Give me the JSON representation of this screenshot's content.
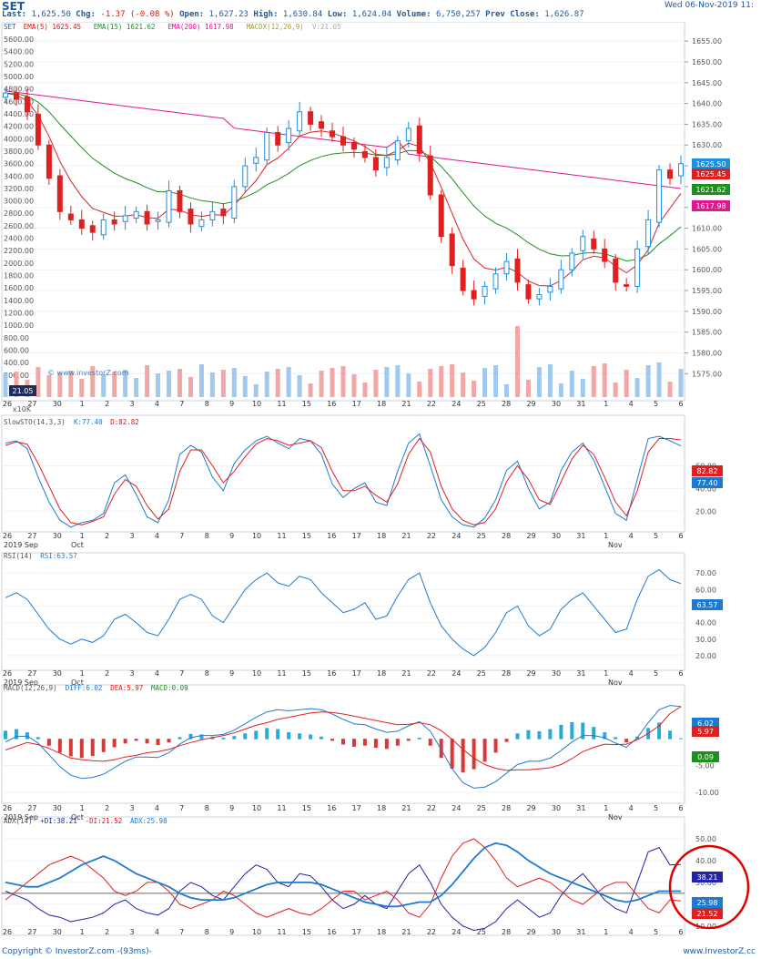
{
  "header": {
    "symbol": "SET",
    "last_label": "Last:",
    "last": "1,625.50",
    "chg_label": "Chg:",
    "chg": "-1.37 (-0.08 %)",
    "open_label": "Open:",
    "open": "1,627.23",
    "high_label": "High:",
    "high": "1,630.84",
    "low_label": "Low:",
    "low": "1,624.04",
    "volume_label": "Volume:",
    "volume": "6,750,257",
    "prev_label": "Prev Close:",
    "prev": "1,626.87",
    "datetime": "Wed 06-Nov-2019 11:"
  },
  "legend": {
    "price": [
      {
        "text": "SET",
        "color": "#1e5aa0"
      },
      {
        "text": "EMA(5)  1625.45",
        "color": "#d11"
      },
      {
        "text": "EMA(15)  1621.62",
        "color": "#228b22"
      },
      {
        "text": "EMA(200)  1617.98",
        "color": "#e0168c"
      },
      {
        "text": "MACDX(12,26,9)",
        "color": "#9aa030"
      },
      {
        "text": "V:21.05",
        "color": "#aaa"
      }
    ],
    "stoch": [
      {
        "text": "SlowSTO(14,3,3)",
        "color": "#555"
      },
      {
        "text": "K:77.40",
        "color": "#1e7ad0"
      },
      {
        "text": "D:82.82",
        "color": "#d11"
      }
    ],
    "rsi": [
      {
        "text": "RSI(14)",
        "color": "#555"
      },
      {
        "text": "RSI:63.57",
        "color": "#1e7ad0"
      }
    ],
    "macd": [
      {
        "text": "MACD(12,26,9)",
        "color": "#555"
      },
      {
        "text": "DIFF:6.02",
        "color": "#1e7ad0"
      },
      {
        "text": "DEA:5.97",
        "color": "#d11"
      },
      {
        "text": "MACD:0.09",
        "color": "#228b22"
      }
    ],
    "adx": [
      {
        "text": "ADX(14)",
        "color": "#555"
      },
      {
        "text": "+DI:38.21",
        "color": "#2222aa"
      },
      {
        "text": "-DI:21.52",
        "color": "#d11"
      },
      {
        "text": "ADX:25.98",
        "color": "#1e7ad0"
      }
    ]
  },
  "watermark": "© www.investorZ.com",
  "volume_unit": "x10K",
  "volume_last": "21.05",
  "footer": {
    "left": "Copyright © InvestorZ.com -(93ms)-",
    "right": "www.InvestorZ.cc"
  },
  "colors": {
    "up": "#1e8fe0",
    "down": "#e02020",
    "ema5": "#e02020",
    "ema15": "#1f8f1f",
    "ema200": "#e0168c",
    "adx": "#1e7ad0",
    "pdi": "#2222aa",
    "ndi": "#e02020",
    "highlight": "#e00000"
  },
  "chart_data": [
    {
      "type": "candlestick",
      "title": "SET",
      "x_labels": [
        "30",
        "1",
        "2",
        "3",
        "4",
        "7",
        "8",
        "9",
        "10",
        "11",
        "15",
        "16",
        "17",
        "18",
        "21",
        "22",
        "24",
        "25",
        "28",
        "29",
        "30",
        "31",
        "1",
        "4",
        "5",
        "6"
      ],
      "month_labels": [
        "Oct",
        "Nov"
      ],
      "price_axis": [
        "1655.00",
        "1650.00",
        "1645.00",
        "1640.00",
        "1635.00",
        "1630.00",
        "1625.00",
        "1620.00",
        "1615.00",
        "1610.00",
        "1605.00",
        "1600.00",
        "1595.00",
        "1590.00",
        "1585.00",
        "1580.00",
        "1575.00"
      ],
      "volume_axis": [
        "5600.00",
        "5400.00",
        "5200.00",
        "5000.00",
        "4800.00",
        "4600.00",
        "4400.00",
        "4200.00",
        "4000.00",
        "3800.00",
        "3600.00",
        "3400.00",
        "3200.00",
        "3000.00",
        "2800.00",
        "2600.00",
        "2400.00",
        "2200.00",
        "2000.00",
        "1800.00",
        "1600.00",
        "1400.00",
        "1200.00",
        "1000.00",
        "800.00",
        "600.00",
        "400.00",
        "200.00"
      ],
      "ylim": [
        1572,
        1657
      ],
      "close": [
        1642.5,
        1641,
        1638,
        1630,
        1622,
        1614,
        1612,
        1610,
        1609,
        1612,
        1611,
        1613,
        1614,
        1611,
        1612,
        1619,
        1614,
        1611,
        1612,
        1614,
        1613,
        1620,
        1625,
        1627,
        1633,
        1630,
        1634,
        1638,
        1635,
        1634,
        1632,
        1630,
        1629,
        1627,
        1624,
        1627,
        1631,
        1634,
        1628,
        1618,
        1608,
        1601,
        1595,
        1593,
        1596,
        1599,
        1602,
        1597,
        1593,
        1594,
        1596,
        1600,
        1604,
        1608,
        1605,
        1602,
        1597,
        1596,
        1605,
        1612,
        1624,
        1622,
        1625.5
      ],
      "price_tags": [
        {
          "value": "1625.50",
          "color": "#1e8fe0"
        },
        {
          "value": "1625.45",
          "color": "#e02020"
        },
        {
          "value": "1621.62",
          "color": "#1f8f1f"
        },
        {
          "value": "1617.98",
          "color": "#e0168c"
        }
      ]
    },
    {
      "type": "line",
      "title": "SlowSTO(14,3,3)",
      "ylim": [
        5,
        90
      ],
      "y_ticks": [
        "60.00",
        "40.00",
        "20.00"
      ],
      "series": [
        {
          "name": "K",
          "values": [
            80,
            82,
            75,
            50,
            28,
            12,
            6,
            10,
            12,
            18,
            45,
            52,
            35,
            15,
            10,
            30,
            70,
            78,
            72,
            50,
            38,
            62,
            74,
            82,
            86,
            80,
            75,
            84,
            82,
            70,
            44,
            32,
            40,
            45,
            28,
            25,
            55,
            80,
            88,
            60,
            30,
            15,
            8,
            6,
            14,
            30,
            56,
            64,
            40,
            22,
            28,
            56,
            72,
            80,
            65,
            42,
            18,
            12,
            48,
            84,
            86,
            82,
            77.4
          ]
        },
        {
          "name": "D",
          "values": [
            78,
            81,
            79,
            62,
            42,
            22,
            10,
            8,
            11,
            15,
            35,
            48,
            42,
            25,
            13,
            22,
            55,
            74,
            74,
            60,
            45,
            55,
            68,
            79,
            84,
            82,
            78,
            80,
            82,
            76,
            55,
            38,
            38,
            42,
            34,
            28,
            44,
            70,
            84,
            72,
            42,
            22,
            12,
            8,
            10,
            22,
            46,
            60,
            48,
            30,
            26,
            46,
            66,
            78,
            70,
            50,
            28,
            16,
            38,
            72,
            84,
            84,
            82.82
          ]
        }
      ],
      "last_tags": [
        {
          "value": "82.82",
          "color": "#e02020"
        },
        {
          "value": "77.40",
          "color": "#1e7ad0"
        }
      ]
    },
    {
      "type": "line",
      "title": "RSI(14)",
      "ylim": [
        15,
        75
      ],
      "y_ticks": [
        "70.00",
        "60.00",
        "50.00",
        "40.00",
        "30.00",
        "20.00"
      ],
      "series": [
        {
          "name": "RSI",
          "values": [
            55,
            58,
            54,
            45,
            36,
            30,
            27,
            30,
            28,
            32,
            42,
            45,
            40,
            34,
            32,
            42,
            54,
            57,
            54,
            44,
            40,
            50,
            60,
            66,
            70,
            64,
            62,
            68,
            66,
            58,
            52,
            46,
            48,
            52,
            42,
            44,
            56,
            66,
            70,
            52,
            38,
            30,
            24,
            20,
            25,
            34,
            46,
            50,
            38,
            32,
            36,
            48,
            54,
            58,
            50,
            42,
            34,
            36,
            54,
            68,
            72,
            66,
            63.57
          ]
        }
      ],
      "last_tags": [
        {
          "value": "63.57",
          "color": "#1e7ad0"
        }
      ]
    },
    {
      "type": "bar",
      "title": "MACD(12,26,9)",
      "ylim": [
        -11,
        8
      ],
      "y_ticks": [
        "-5.00",
        "-10.00"
      ],
      "series": [
        {
          "name": "MACD",
          "values": [
            1.5,
            1.8,
            1.2,
            0.3,
            -1.2,
            -2.5,
            -3.2,
            -3.5,
            -3.1,
            -2.4,
            -1.5,
            -0.8,
            -0.3,
            -0.8,
            -1.1,
            -0.6,
            0.3,
            0.9,
            0.8,
            0.4,
            0.2,
            0.5,
            1.0,
            1.5,
            2.0,
            1.8,
            1.2,
            1.0,
            0.8,
            0.4,
            -0.3,
            -1.0,
            -1.4,
            -1.2,
            -1.6,
            -1.8,
            -1.2,
            -0.3,
            0.2,
            -1.2,
            -3.5,
            -5.5,
            -6.2,
            -5.6,
            -4.2,
            -2.5,
            -0.5,
            1.0,
            1.6,
            1.4,
            1.8,
            2.6,
            3.1,
            3.0,
            2.2,
            1.2,
            0.3,
            -0.6,
            0.4,
            2.0,
            3.0,
            1.5,
            0.09
          ]
        },
        {
          "name": "DIFF",
          "values": [
            -0.6,
            0.4,
            0.5,
            -0.8,
            -3,
            -5.2,
            -6.8,
            -7.4,
            -7.2,
            -6.6,
            -5.4,
            -4.2,
            -3.4,
            -3.4,
            -3.5,
            -2.6,
            -1,
            0.2,
            0.6,
            0.6,
            0.8,
            1.6,
            2.8,
            4.0,
            5.0,
            5.4,
            5.2,
            5.4,
            5.6,
            5.4,
            4.6,
            3.6,
            2.8,
            2.6,
            1.8,
            1.2,
            1.4,
            2.4,
            3.2,
            1.4,
            -2,
            -5.6,
            -8.2,
            -9.2,
            -9.0,
            -8.0,
            -6.4,
            -4.8,
            -4.2,
            -4.2,
            -3.6,
            -2.2,
            -0.6,
            0.6,
            0.6,
            0.2,
            -0.8,
            -1.6,
            0.2,
            3.0,
            5.4,
            6.2,
            6.02
          ]
        },
        {
          "name": "DEA",
          "values": [
            -2.1,
            -1.4,
            -0.7,
            -1.1,
            -1.8,
            -2.7,
            -3.6,
            -3.9,
            -4.1,
            -4.2,
            -3.9,
            -3.4,
            -3.1,
            -2.6,
            -2.4,
            -2.0,
            -1.3,
            -0.7,
            -0.2,
            0.2,
            0.6,
            1.1,
            1.8,
            2.5,
            3.0,
            3.6,
            4.0,
            4.4,
            4.8,
            5.0,
            4.9,
            4.6,
            4.2,
            3.8,
            3.4,
            3.0,
            2.6,
            2.7,
            3.0,
            2.6,
            1.5,
            -0.1,
            -2.0,
            -3.6,
            -4.8,
            -5.5,
            -5.9,
            -5.8,
            -5.8,
            -5.6,
            -5.4,
            -4.8,
            -3.7,
            -2.4,
            -1.6,
            -1.0,
            -1.1,
            -1.0,
            -0.2,
            1.0,
            2.4,
            4.7,
            5.97
          ]
        }
      ],
      "last_tags": [
        {
          "value": "6.02",
          "color": "#1e7ad0"
        },
        {
          "value": "5.97",
          "color": "#e02020"
        },
        {
          "value": "0.09",
          "color": "#1f8f1f"
        }
      ]
    },
    {
      "type": "line",
      "title": "ADX(14)",
      "ylim": [
        7,
        55
      ],
      "y_ticks": [
        "50.00",
        "40.00",
        "30.00",
        "20.00",
        "10.00"
      ],
      "series": [
        {
          "name": "+DI",
          "values": [
            26,
            24,
            22,
            18,
            15,
            14,
            12,
            13,
            14,
            16,
            20,
            22,
            18,
            16,
            15,
            18,
            26,
            30,
            28,
            24,
            22,
            28,
            34,
            38,
            36,
            30,
            28,
            34,
            33,
            28,
            22,
            18,
            20,
            24,
            20,
            18,
            26,
            34,
            38,
            30,
            20,
            14,
            10,
            8,
            9,
            12,
            18,
            22,
            18,
            14,
            16,
            24,
            30,
            34,
            28,
            22,
            18,
            16,
            30,
            44,
            46,
            38,
            38.21
          ]
        },
        {
          "name": "-DI",
          "values": [
            22,
            26,
            30,
            34,
            38,
            40,
            42,
            40,
            36,
            32,
            26,
            24,
            26,
            30,
            30,
            26,
            20,
            18,
            20,
            22,
            26,
            24,
            20,
            16,
            14,
            16,
            18,
            16,
            15,
            18,
            22,
            26,
            26,
            22,
            24,
            26,
            22,
            16,
            14,
            20,
            32,
            42,
            48,
            50,
            46,
            40,
            32,
            28,
            30,
            32,
            30,
            26,
            22,
            20,
            24,
            28,
            30,
            30,
            24,
            18,
            16,
            22,
            21.52
          ]
        },
        {
          "name": "ADX",
          "values": [
            30,
            29,
            28,
            28,
            30,
            32,
            35,
            38,
            40,
            42,
            40,
            37,
            34,
            32,
            30,
            28,
            25,
            23,
            22,
            22,
            22,
            23,
            25,
            27,
            29,
            30,
            30,
            30,
            30,
            29,
            27,
            25,
            23,
            21,
            20,
            19,
            19,
            20,
            21,
            21,
            24,
            29,
            35,
            41,
            46,
            48,
            47,
            44,
            40,
            37,
            34,
            32,
            30,
            28,
            26,
            24,
            22,
            21,
            22,
            24,
            26,
            26,
            25.98
          ]
        }
      ],
      "last_tags": [
        {
          "value": "38.21",
          "color": "#2222aa"
        },
        {
          "value": "25.98",
          "color": "#1e7ad0"
        },
        {
          "value": "21.52",
          "color": "#e02020"
        }
      ]
    }
  ],
  "dates": [
    "26",
    "27",
    "30",
    "1",
    "2",
    "3",
    "4",
    "7",
    "8",
    "9",
    "10",
    "11",
    "15",
    "16",
    "17",
    "18",
    "21",
    "22",
    "24",
    "25",
    "28",
    "29",
    "30",
    "31",
    "1",
    "4",
    "5",
    "6"
  ],
  "date_sub": [
    "2019 Sep",
    "Oct",
    "Nov"
  ]
}
